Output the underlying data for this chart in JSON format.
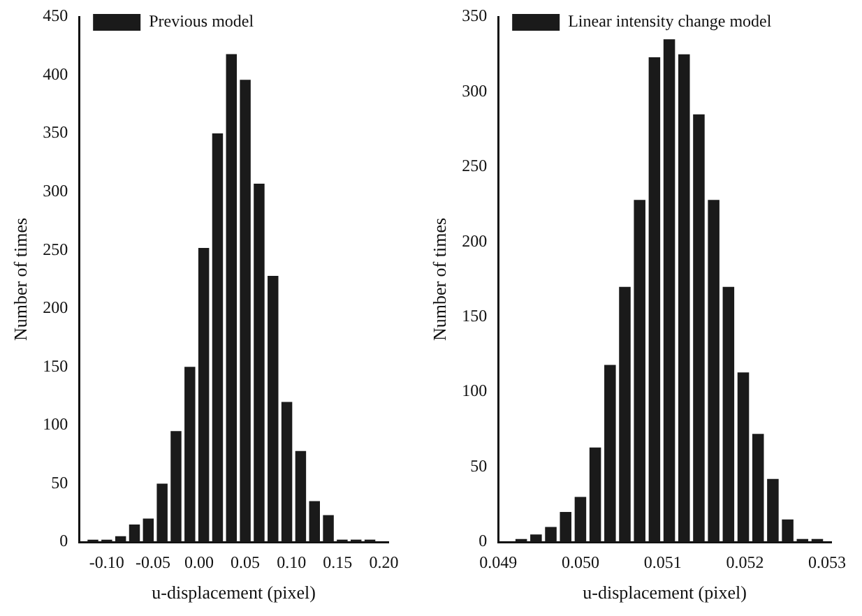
{
  "chart_data": [
    {
      "type": "histogram",
      "xlabel": "u-displacement (pixel)",
      "ylabel": "Number of times",
      "legend": "top left",
      "series": [
        {
          "name": "Previous model",
          "color": "#1a1a1a",
          "values": [
            2,
            2,
            5,
            15,
            20,
            50,
            95,
            150,
            252,
            350,
            418,
            396,
            307,
            228,
            120,
            78,
            35,
            23,
            2,
            2,
            2
          ]
        }
      ],
      "bins": [
        -0.1225,
        -0.1075,
        -0.0925,
        -0.0775,
        -0.0625,
        -0.0475,
        -0.0325,
        -0.0175,
        -0.0025,
        0.0125,
        0.0275,
        0.0425,
        0.0575,
        0.0725,
        0.0875,
        0.1025,
        0.1175,
        0.1325,
        0.1475,
        0.1625,
        0.1775,
        0.1925
      ],
      "xlim": [
        -0.13,
        0.205
      ],
      "xticks": [
        {
          "value": -0.1,
          "label": "-0.10"
        },
        {
          "value": -0.05,
          "label": "-0.05"
        },
        {
          "value": 0,
          "label": "0.00"
        },
        {
          "value": 0.05,
          "label": "0.05"
        },
        {
          "value": 0.1,
          "label": "0.10"
        },
        {
          "value": 0.15,
          "label": "0.15"
        },
        {
          "value": 0.2,
          "label": "0.20"
        }
      ],
      "ylim": [
        0,
        450
      ],
      "yticks": [
        0,
        50,
        100,
        150,
        200,
        250,
        300,
        350,
        400,
        450
      ]
    },
    {
      "type": "histogram",
      "xlabel": "u-displacement (pixel)",
      "ylabel": "Number of times",
      "legend": "top left",
      "series": [
        {
          "name": "Linear intensity change model",
          "color": "#1a1a1a",
          "values": [
            2,
            5,
            10,
            20,
            30,
            63,
            118,
            170,
            228,
            323,
            335,
            325,
            285,
            228,
            170,
            113,
            72,
            42,
            15,
            2,
            2
          ]
        }
      ],
      "bins": [
        0.04919,
        0.04937,
        0.04955,
        0.04973,
        0.04991,
        0.05009,
        0.05027,
        0.05045,
        0.05063,
        0.05081,
        0.05099,
        0.05117,
        0.05135,
        0.05153,
        0.05171,
        0.05189,
        0.05207,
        0.05225,
        0.05243,
        0.05261,
        0.05279,
        0.05297
      ],
      "xlim": [
        0.049,
        0.05305
      ],
      "xticks": [
        {
          "value": 0.049,
          "label": "0.049"
        },
        {
          "value": 0.05,
          "label": "0.050"
        },
        {
          "value": 0.051,
          "label": "0.051"
        },
        {
          "value": 0.052,
          "label": "0.052"
        },
        {
          "value": 0.053,
          "label": "0.053"
        }
      ],
      "ylim": [
        0,
        350
      ],
      "yticks": [
        0,
        50,
        100,
        150,
        200,
        250,
        300,
        350
      ]
    }
  ]
}
